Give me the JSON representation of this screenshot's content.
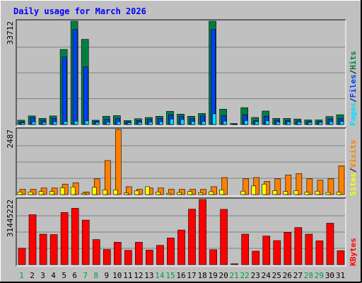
{
  "chart_data": {
    "type": "bar",
    "title": "Daily usage for March 2026",
    "categories": [
      "1",
      "2",
      "3",
      "4",
      "5",
      "6",
      "7",
      "8",
      "9",
      "10",
      "11",
      "12",
      "13",
      "14",
      "15",
      "16",
      "17",
      "18",
      "19",
      "20",
      "21",
      "22",
      "23",
      "24",
      "25",
      "26",
      "27",
      "28",
      "29",
      "30",
      "31"
    ],
    "weekend_days": [
      "1",
      "7",
      "8",
      "14",
      "15",
      "21",
      "22",
      "28",
      "29"
    ],
    "panels": [
      {
        "id": "hits",
        "max_label": "33712",
        "ymax": 33712,
        "legend": [
          "Pages",
          "/",
          "Files",
          "/",
          "Hits"
        ],
        "series": [
          {
            "name": "Hits",
            "values": [
              1400,
              2800,
              2000,
              2800,
              24500,
              33712,
              27800,
              1400,
              2700,
              2900,
              1300,
              1900,
              2300,
              2700,
              4300,
              3400,
              2700,
              3600,
              33712,
              5000,
              300,
              5500,
              2300,
              4400,
              2000,
              2000,
              1800,
              1500,
              1500,
              2600,
              3200
            ]
          },
          {
            "name": "Files",
            "values": [
              900,
              2200,
              1400,
              2000,
              22000,
              31000,
              18800,
              1100,
              1800,
              2000,
              900,
              1300,
              1700,
              2000,
              3200,
              2600,
              1900,
              2800,
              31000,
              2900,
              200,
              3200,
              1300,
              2700,
              1400,
              1300,
              1200,
              1000,
              1000,
              1800,
              2000
            ]
          },
          {
            "name": "Pages",
            "values": [
              500,
              900,
              700,
              900,
              1000,
              1100,
              1200,
              700,
              800,
              900,
              600,
              700,
              800,
              900,
              1800,
              1600,
              1000,
              1000,
              3500,
              1100,
              100,
              1300,
              900,
              1200,
              800,
              800,
              800,
              700,
              700,
              900,
              1000
            ]
          }
        ],
        "colors": [
          "#008040",
          "#0040ff",
          "#00e0ff"
        ]
      },
      {
        "id": "visits",
        "max_label": "2487",
        "ymax": 2487,
        "legend": [
          "Sites",
          "/",
          "Visits"
        ],
        "series": [
          {
            "name": "Visits",
            "values": [
              200,
              200,
              250,
              250,
              400,
              450,
              100,
              600,
              1300,
              2487,
              300,
              200,
              250,
              250,
              200,
              200,
              200,
              200,
              300,
              650,
              0,
              600,
              650,
              500,
              600,
              750,
              800,
              600,
              550,
              600,
              1100
            ]
          },
          {
            "name": "Sites",
            "values": [
              100,
              100,
              120,
              120,
              260,
              290,
              50,
              280,
              180,
              180,
              60,
              140,
              300,
              100,
              50,
              80,
              120,
              70,
              110,
              180,
              0,
              130,
              330,
              400,
              150,
              120,
              150,
              90,
              130,
              80,
              90
            ]
          }
        ],
        "colors": [
          "#ff8000",
          "#ffff00"
        ]
      },
      {
        "id": "kbytes",
        "max_label": "31445222",
        "ymax": 31445222,
        "legend": [
          "KBytes"
        ],
        "series": [
          {
            "name": "KBytes",
            "values": [
              7900,
              24100,
              14700,
              14500,
              25200,
              27200,
              21500,
              12100,
              7300,
              10800,
              6900,
              10800,
              7000,
              9300,
              12900,
              16700,
              26800,
              31445,
              7200,
              26700,
              400,
              14700,
              6500,
              13800,
              11600,
              15600,
              17900,
              14700,
              11500,
              20000,
              6700
            ]
          }
        ],
        "colors": [
          "#ff0000"
        ]
      }
    ]
  },
  "colors": {
    "background": "#c0c0c0",
    "panel": "#c0c0c0",
    "gridline": "#808080",
    "border_dark": "#000000",
    "title": "#0000ff",
    "hits": "#008040",
    "files": "#0040ff",
    "pages": "#00e0ff",
    "visits": "#ff8000",
    "sites": "#ffff00",
    "kbytes": "#ff0000",
    "weekday_label": "#000000",
    "weekend_label": "#00a040"
  }
}
